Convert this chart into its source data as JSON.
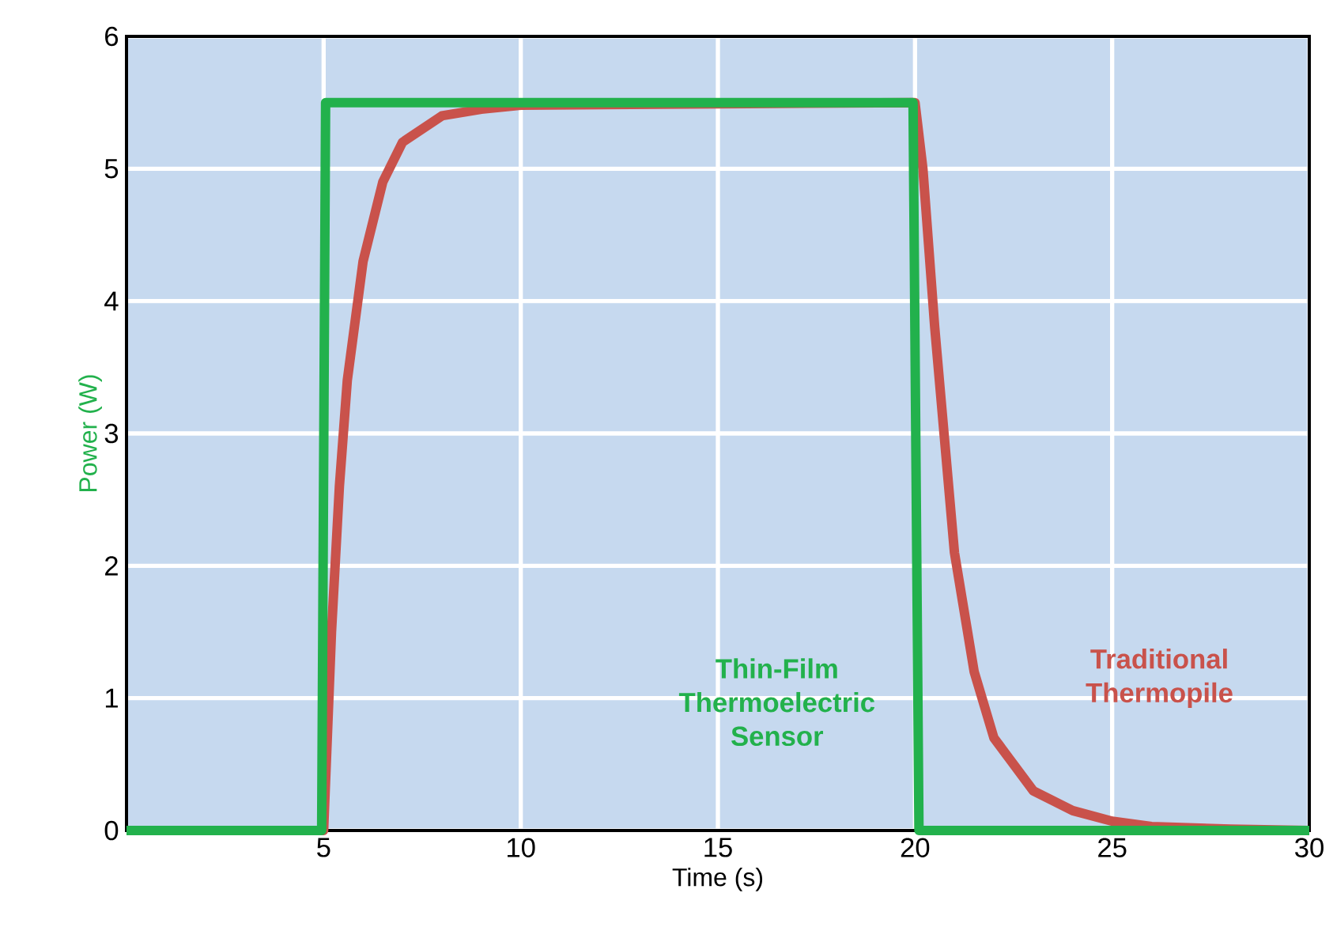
{
  "chart_data": {
    "type": "line",
    "xlabel": "Time (s)",
    "ylabel": "Power (W)",
    "xlim": [
      0,
      30
    ],
    "ylim": [
      0,
      6
    ],
    "xticks": [
      5,
      10,
      15,
      20,
      25,
      30
    ],
    "yticks": [
      0,
      1,
      2,
      3,
      4,
      5,
      6
    ],
    "grid": true,
    "series": [
      {
        "name": "Traditional Thermopile",
        "color": "#c9524b",
        "x": [
          0,
          5,
          5.2,
          5.4,
          5.6,
          6,
          6.5,
          7,
          8,
          9,
          10,
          12,
          15,
          20,
          20.2,
          20.5,
          21,
          21.5,
          22,
          23,
          24,
          25,
          26,
          28,
          30
        ],
        "values": [
          0,
          0,
          1.5,
          2.6,
          3.4,
          4.3,
          4.9,
          5.2,
          5.4,
          5.45,
          5.48,
          null,
          null,
          5.5,
          5.0,
          3.8,
          2.1,
          1.2,
          0.7,
          0.3,
          0.15,
          0.07,
          0.03,
          0.01,
          0
        ]
      },
      {
        "name": "Thin-Film Thermoelectric Sensor",
        "color": "#22b14c",
        "x": [
          0,
          4.95,
          5.05,
          19.95,
          20.1,
          30
        ],
        "values": [
          0,
          0,
          5.5,
          5.5,
          0,
          0
        ]
      }
    ]
  }
}
